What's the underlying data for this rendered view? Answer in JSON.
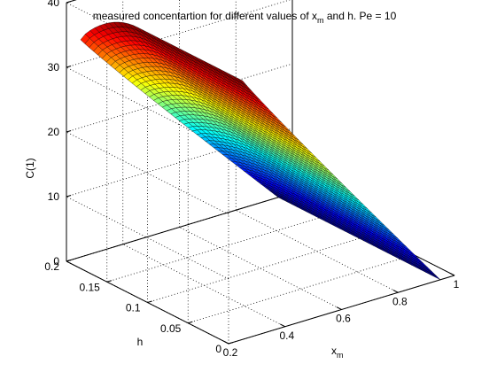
{
  "chart_data": {
    "type": "surface",
    "title_main": "measured concentartion for different values of x",
    "title_sub": "m",
    "title_tail": " and h. Pe = 10",
    "xlabel_main": "x",
    "xlabel_sub": "m",
    "ylabel": "h",
    "zlabel": "C(1)",
    "xlim": [
      0.2,
      1.0
    ],
    "ylim": [
      0.0,
      0.2
    ],
    "zlim": [
      0,
      40
    ],
    "x_ticks": [
      "0.2",
      "0.4",
      "0.6",
      "0.8",
      "1"
    ],
    "x_tick_values": [
      0.2,
      0.4,
      0.6,
      0.8,
      1.0
    ],
    "y_ticks": [
      "0",
      "0.05",
      "0.1",
      "0.15",
      "0.2"
    ],
    "y_tick_values": [
      0.0,
      0.05,
      0.1,
      0.15,
      0.2
    ],
    "z_ticks": [
      "0",
      "10",
      "20",
      "30",
      "40"
    ],
    "z_tick_values": [
      0,
      10,
      20,
      30,
      40
    ],
    "grid": true,
    "colormap": "jet",
    "surface": {
      "x_range": [
        0.25,
        0.95
      ],
      "h_range": [
        0.0,
        0.2
      ],
      "c_at_xmin_hmax": 33,
      "c_at_xmin_h_mid": 40,
      "c_at_xmax": 0,
      "edge_color": "#000000"
    }
  }
}
